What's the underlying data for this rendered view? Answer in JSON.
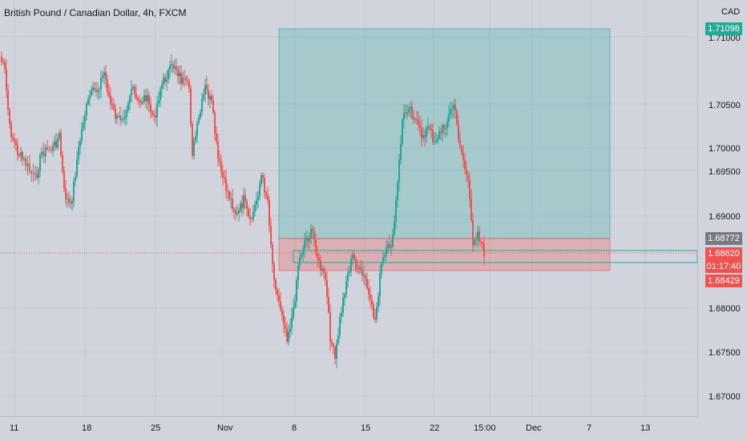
{
  "header": {
    "symbol_title": "British Pound / Canadian Dollar, 4h, FXCM"
  },
  "price_scale": {
    "currency": "CAD",
    "ticks": [
      "1.71000",
      "1.70500",
      "1.70000",
      "1.69500",
      "1.69000",
      "1.68000",
      "1.67500",
      "1.67000"
    ],
    "target_label": "1.71098",
    "entry_label": "1.68772",
    "current_price": "1.68620",
    "countdown": "01:17:40",
    "stop_label": "1.68429"
  },
  "time_axis": {
    "labels": [
      "11",
      "18",
      "25",
      "Nov",
      "8",
      "15",
      "22",
      "15:00",
      "Dec",
      "7",
      "13"
    ]
  },
  "colors": {
    "background": "#d1d4dc",
    "up": "#26a69a",
    "down": "#ef5350",
    "target_zone": "rgba(38,166,154,0.25)",
    "stop_zone": "rgba(239,83,80,0.28)",
    "target_badge": "#22ab94",
    "entry_badge": "#787b86",
    "price_badge": "#ef5350"
  }
}
